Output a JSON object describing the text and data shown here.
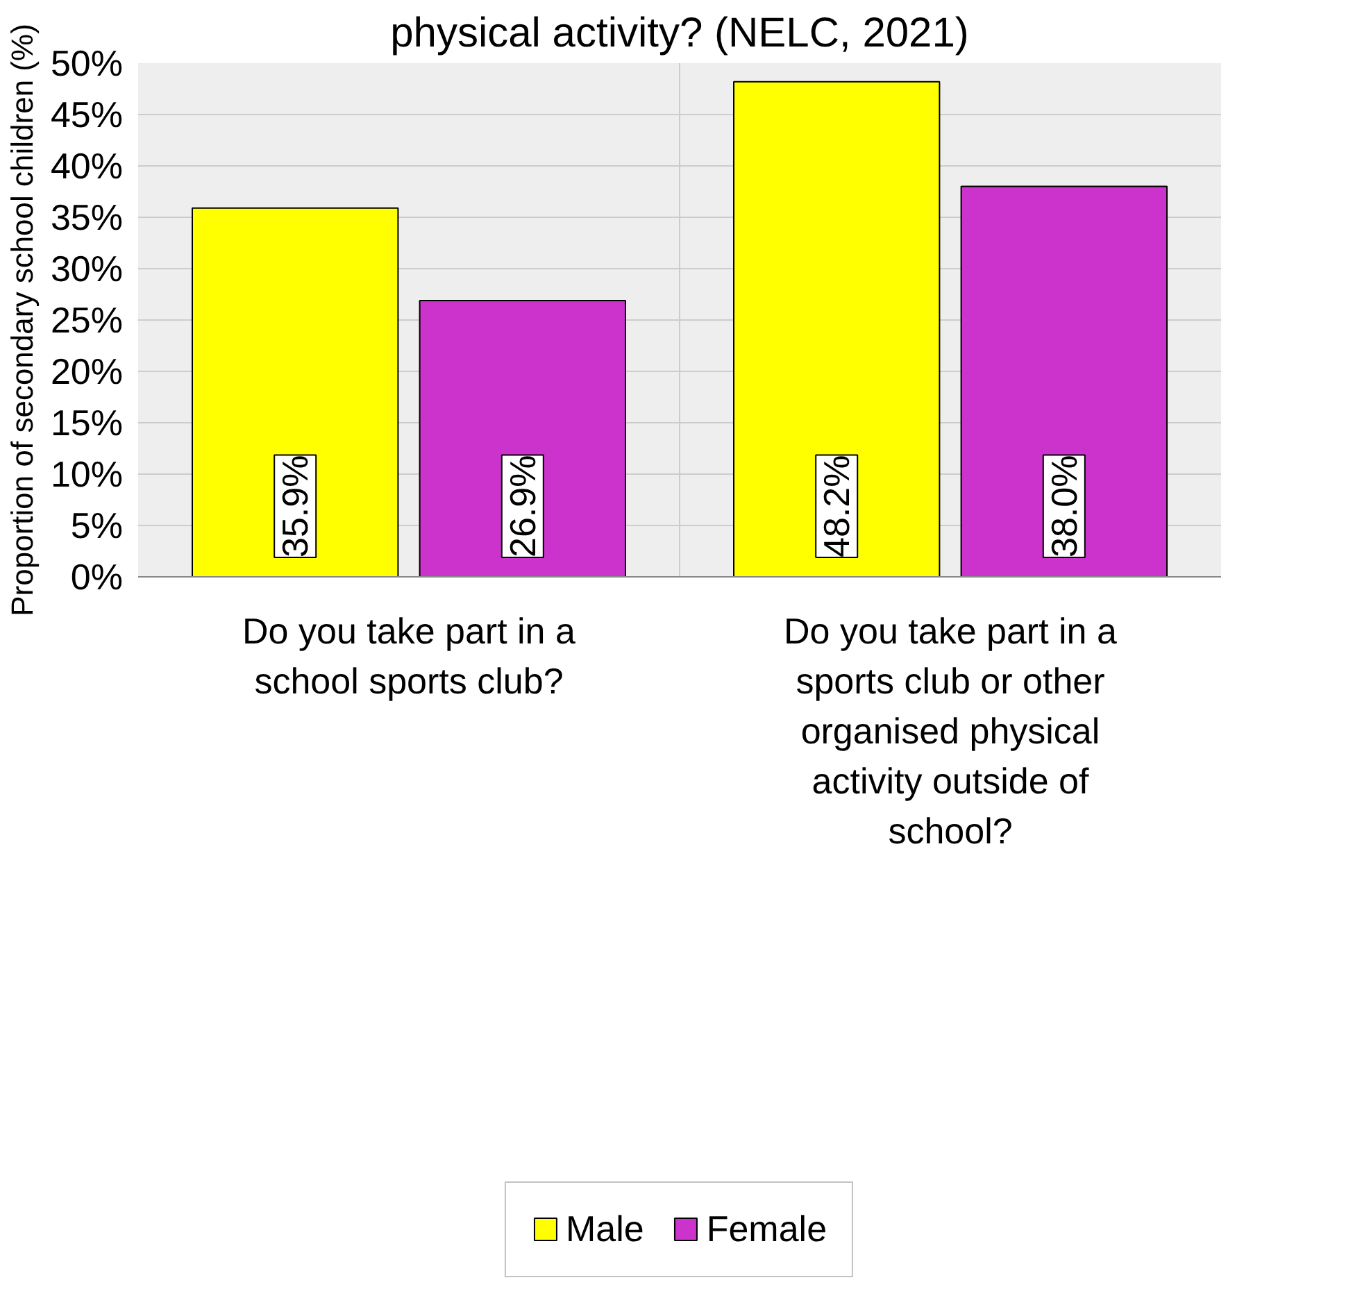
{
  "chart_data": {
    "type": "bar",
    "title": "physical activity? (NELC, 2021)",
    "ylabel": "Proportion of secondary school children (%)",
    "categories": [
      "Do you take part in a school sports club?",
      "Do you take part in a sports club or other organised physical activity outside of school?"
    ],
    "series": [
      {
        "name": "Male",
        "color": "#ffff00",
        "values": [
          35.9,
          48.2
        ]
      },
      {
        "name": "Female",
        "color": "#cc33cc",
        "values": [
          26.9,
          38.0
        ]
      }
    ],
    "ylim": [
      0,
      50
    ],
    "yticks": [
      {
        "value": 0,
        "label": "0%"
      },
      {
        "value": 5,
        "label": "5%"
      },
      {
        "value": 10,
        "label": "10%"
      },
      {
        "value": 15,
        "label": "15%"
      },
      {
        "value": 20,
        "label": "20%"
      },
      {
        "value": 25,
        "label": "25%"
      },
      {
        "value": 30,
        "label": "30%"
      },
      {
        "value": 35,
        "label": "35%"
      },
      {
        "value": 40,
        "label": "40%"
      },
      {
        "value": 45,
        "label": "45%"
      },
      {
        "value": 50,
        "label": "50%"
      }
    ],
    "value_labels": [
      [
        "35.9%",
        "48.2%"
      ],
      [
        "26.9%",
        "38.0%"
      ]
    ],
    "grid": true,
    "legend": "bottom"
  }
}
